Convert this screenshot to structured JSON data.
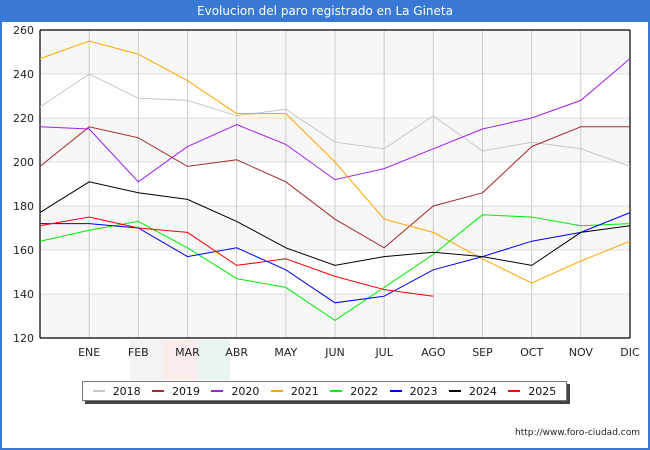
{
  "header": {
    "title": "Evolucion del paro registrado en La Gineta"
  },
  "footer": {
    "url": "http://www.foro-ciudad.com"
  },
  "chart_data": {
    "type": "line",
    "title": "Evolucion del paro registrado en La Gineta",
    "xlabel": "",
    "ylabel": "",
    "categories": [
      "",
      "ENE",
      "FEB",
      "MAR",
      "ABR",
      "MAY",
      "JUN",
      "JUL",
      "AGO",
      "SEP",
      "OCT",
      "NOV",
      "DIC"
    ],
    "ylim": [
      120,
      260
    ],
    "yticks": [
      120,
      140,
      160,
      180,
      200,
      220,
      240,
      260
    ],
    "grid": true,
    "legend_position": "bottom",
    "series": [
      {
        "name": "2018",
        "color": "#c8c8c8",
        "values": [
          225,
          240,
          229,
          228,
          221,
          224,
          209,
          206,
          221,
          205,
          209,
          206,
          198
        ]
      },
      {
        "name": "2019",
        "color": "#a52a2a",
        "values": [
          198,
          216,
          211,
          198,
          201,
          191,
          174,
          161,
          180,
          186,
          207,
          216,
          216
        ]
      },
      {
        "name": "2020",
        "color": "#a020f0",
        "values": [
          216,
          215,
          191,
          207,
          217,
          208,
          192,
          197,
          206,
          215,
          220,
          228,
          247
        ]
      },
      {
        "name": "2021",
        "color": "#ffa500",
        "values": [
          247,
          255,
          249,
          237,
          222,
          222,
          200,
          174,
          168,
          156,
          145,
          155,
          164
        ]
      },
      {
        "name": "2022",
        "color": "#00ee00",
        "values": [
          164,
          169,
          173,
          161,
          147,
          143,
          128,
          143,
          158,
          176,
          175,
          171,
          172
        ]
      },
      {
        "name": "2023",
        "color": "#0000ee",
        "values": [
          172,
          172,
          170,
          157,
          161,
          151,
          136,
          139,
          151,
          157,
          164,
          168,
          177
        ]
      },
      {
        "name": "2024",
        "color": "#000000",
        "values": [
          177,
          191,
          186,
          183,
          173,
          161,
          153,
          157,
          159,
          157,
          153,
          168,
          171
        ]
      },
      {
        "name": "2025",
        "color": "#ff0000",
        "values": [
          171,
          175,
          170,
          168,
          153,
          156,
          148,
          142,
          139
        ]
      }
    ]
  }
}
